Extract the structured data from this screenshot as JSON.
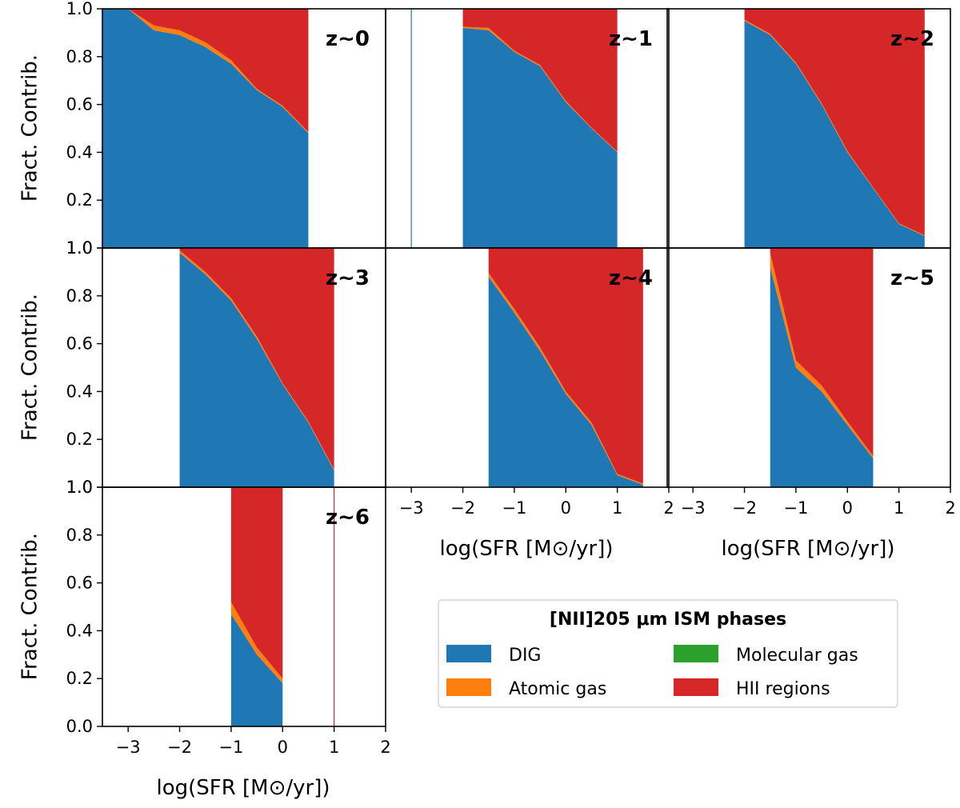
{
  "chart_data": {
    "type": "area",
    "stacked": true,
    "x_axis_label": "log(SFR [M⊙/yr])",
    "y_axis_label": "Fract. Contrib.",
    "xlim": [
      -3.5,
      2
    ],
    "ylim": [
      0,
      1
    ],
    "x_ticks": [
      -3,
      -2,
      -1,
      0,
      1,
      2
    ],
    "x_tick_labels": [
      "−3",
      "−2",
      "−1",
      "0",
      "1",
      "2"
    ],
    "y_ticks": [
      0.0,
      0.2,
      0.4,
      0.6,
      0.8,
      1.0
    ],
    "y_tick_labels": [
      "0.0",
      "0.2",
      "0.4",
      "0.6",
      "0.8",
      "1.0"
    ],
    "y_top_tick_label_overlap": "1.0",
    "legend": {
      "title": "[NII]205 μm ISM phases",
      "placement": "lower-right",
      "entries": [
        {
          "name": "DIG",
          "color": "#1f77b4"
        },
        {
          "name": "Atomic gas",
          "color": "#ff7f0e"
        },
        {
          "name": "Molecular gas",
          "color": "#2ca02c"
        },
        {
          "name": "HII regions",
          "color": "#d62728"
        }
      ]
    },
    "panels": [
      {
        "label": "z~0",
        "x": [
          -3.5,
          -3,
          -2.5,
          -2,
          -1.5,
          -1,
          -0.5,
          0,
          0.5
        ],
        "series": [
          {
            "name": "DIG",
            "values": [
              1.0,
              1.0,
              0.91,
              0.89,
              0.84,
              0.77,
              0.66,
              0.59,
              0.48
            ]
          },
          {
            "name": "Atomic gas",
            "values": [
              0.0,
              0.0,
              0.02,
              0.02,
              0.02,
              0.015,
              0.005,
              0.005,
              0.005
            ]
          },
          {
            "name": "Molecular gas",
            "values": [
              0,
              0,
              0,
              0,
              0,
              0,
              0,
              0,
              0
            ]
          },
          {
            "name": "HII regions",
            "values": [
              0.0,
              0.0,
              0.07,
              0.09,
              0.14,
              0.215,
              0.335,
              0.405,
              0.515
            ]
          }
        ]
      },
      {
        "label": "z~1",
        "x": [
          -2,
          -1.5,
          -1,
          -0.5,
          0,
          0.5,
          1
        ],
        "series": [
          {
            "name": "DIG",
            "values": [
              0.92,
              0.91,
              0.82,
              0.76,
              0.61,
              0.5,
              0.4
            ]
          },
          {
            "name": "Atomic gas",
            "values": [
              0.005,
              0.01,
              0.005,
              0.005,
              0.005,
              0.003,
              0.003
            ]
          },
          {
            "name": "Molecular gas",
            "values": [
              0,
              0,
              0,
              0,
              0,
              0,
              0
            ]
          },
          {
            "name": "HII regions",
            "values": [
              0.075,
              0.08,
              0.175,
              0.235,
              0.385,
              0.497,
              0.597
            ]
          }
        ],
        "vlines": [
          {
            "x": -3,
            "color": "#1f77b4"
          }
        ]
      },
      {
        "label": "z~2",
        "x": [
          -2,
          -1.5,
          -1,
          -0.5,
          0,
          0.5,
          1,
          1.5
        ],
        "series": [
          {
            "name": "DIG",
            "values": [
              0.95,
              0.89,
              0.77,
              0.6,
              0.4,
              0.25,
              0.1,
              0.05
            ]
          },
          {
            "name": "Atomic gas",
            "values": [
              0.005,
              0.005,
              0.005,
              0.005,
              0.005,
              0.003,
              0.003,
              0.003
            ]
          },
          {
            "name": "Molecular gas",
            "values": [
              0,
              0,
              0,
              0,
              0,
              0,
              0,
              0
            ]
          },
          {
            "name": "HII regions",
            "values": [
              0.045,
              0.105,
              0.225,
              0.395,
              0.595,
              0.747,
              0.897,
              0.947
            ]
          }
        ]
      },
      {
        "label": "z~3",
        "x": [
          -2,
          -1.5,
          -1,
          -0.5,
          0,
          0.5,
          1
        ],
        "series": [
          {
            "name": "DIG",
            "values": [
              0.98,
              0.89,
              0.78,
              0.62,
              0.43,
              0.27,
              0.07
            ]
          },
          {
            "name": "Atomic gas",
            "values": [
              0.01,
              0.01,
              0.01,
              0.01,
              0.005,
              0.005,
              0.005
            ]
          },
          {
            "name": "Molecular gas",
            "values": [
              0,
              0,
              0,
              0,
              0,
              0,
              0
            ]
          },
          {
            "name": "HII regions",
            "values": [
              0.01,
              0.1,
              0.21,
              0.37,
              0.565,
              0.725,
              0.925
            ]
          }
        ]
      },
      {
        "label": "z~4",
        "x": [
          -1.5,
          -1,
          -0.5,
          0,
          0.5,
          1,
          1.5
        ],
        "series": [
          {
            "name": "DIG",
            "values": [
              0.88,
              0.73,
              0.57,
              0.39,
              0.26,
              0.05,
              0.01
            ]
          },
          {
            "name": "Atomic gas",
            "values": [
              0.015,
              0.015,
              0.015,
              0.01,
              0.01,
              0.005,
              0.005
            ]
          },
          {
            "name": "Molecular gas",
            "values": [
              0,
              0,
              0,
              0,
              0,
              0,
              0
            ]
          },
          {
            "name": "HII regions",
            "values": [
              0.105,
              0.255,
              0.415,
              0.6,
              0.73,
              0.945,
              0.985
            ]
          }
        ]
      },
      {
        "label": "z~5",
        "x": [
          -1.5,
          -1,
          -0.5,
          0,
          0.5
        ],
        "series": [
          {
            "name": "DIG",
            "values": [
              0.92,
              0.5,
              0.4,
              0.26,
              0.12
            ]
          },
          {
            "name": "Atomic gas",
            "values": [
              0.06,
              0.03,
              0.025,
              0.015,
              0.01
            ]
          },
          {
            "name": "Molecular gas",
            "values": [
              0,
              0,
              0,
              0,
              0
            ]
          },
          {
            "name": "HII regions",
            "values": [
              0.02,
              0.47,
              0.575,
              0.725,
              0.87
            ]
          }
        ]
      },
      {
        "label": "z~6",
        "x": [
          -1,
          -0.5,
          0
        ],
        "series": [
          {
            "name": "DIG",
            "values": [
              0.47,
              0.3,
              0.18
            ]
          },
          {
            "name": "Atomic gas",
            "values": [
              0.05,
              0.03,
              0.02
            ]
          },
          {
            "name": "Molecular gas",
            "values": [
              0,
              0,
              0
            ]
          },
          {
            "name": "HII regions",
            "values": [
              0.48,
              0.67,
              0.8
            ]
          }
        ],
        "vlines": [
          {
            "x": 1,
            "color": "#d62728"
          }
        ]
      }
    ]
  }
}
